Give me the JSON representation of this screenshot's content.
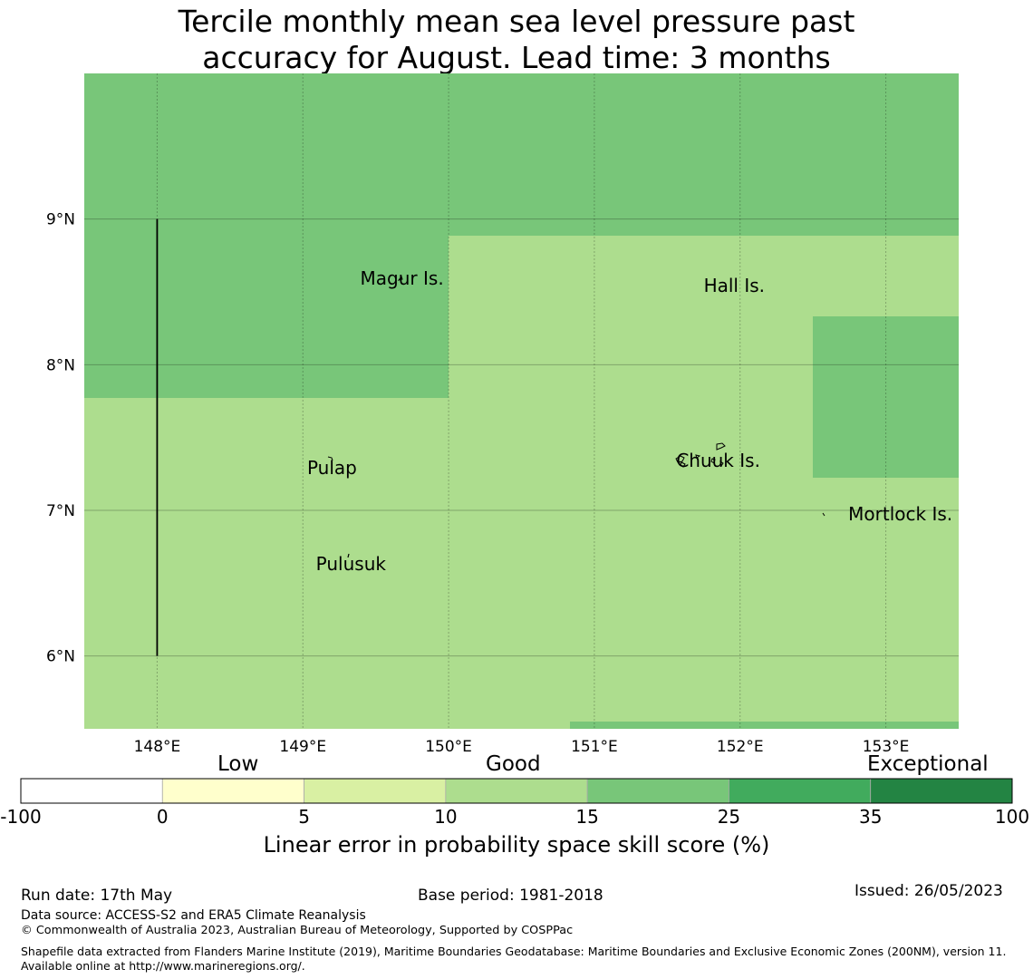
{
  "title_line1": "Tercile monthly mean sea level pressure past",
  "title_line2": "accuracy for August. Lead time: 3 months",
  "map": {
    "lon_range": [
      147.5,
      153.5
    ],
    "lat_range": [
      5.5,
      10.0
    ],
    "x_ticks": [
      "148°E",
      "149°E",
      "150°E",
      "151°E",
      "152°E",
      "153°E"
    ],
    "y_ticks": [
      "9°N",
      "8°N",
      "7°N",
      "6°N"
    ],
    "grid": true,
    "colors": {
      "good_15_25": "#78c679",
      "good_10_15": "#addd8e"
    },
    "places": [
      {
        "name": "Magur Is.",
        "lon": 149.68,
        "lat": 8.55
      },
      {
        "name": "Hall Is.",
        "lon": 151.96,
        "lat": 8.5
      },
      {
        "name": "Pulap",
        "lon": 149.2,
        "lat": 7.25
      },
      {
        "name": "Chuuk Is.",
        "lon": 151.85,
        "lat": 7.3
      },
      {
        "name": "Mortlock Is.",
        "lon": 153.1,
        "lat": 6.93
      },
      {
        "name": "Pulusuk",
        "lon": 149.33,
        "lat": 6.59
      }
    ]
  },
  "colorbar": {
    "categories": [
      "Low",
      "Good",
      "Exceptional"
    ],
    "ticks": [
      "-100",
      "0",
      "5",
      "10",
      "15",
      "25",
      "35",
      "100"
    ],
    "colors": [
      "#ffffff",
      "#ffffcc",
      "#d9f0a3",
      "#addd8e",
      "#78c679",
      "#41ab5d",
      "#238443"
    ],
    "label": "Linear error in probability space skill score (%)"
  },
  "footer": {
    "run_date": "Run date: 17th May",
    "base_period": "Base period: 1981-2018",
    "issued": "Issued: 26/05/2023",
    "data_source": "Data source: ACCESS-S2 and ERA5 Climate Reanalysis",
    "copyright": "© Commonwealth of Australia 2023, Australian Bureau of Meteorology, Supported by COSPPac",
    "shapefile": "Shapefile data extracted from Flanders Marine Institute (2019), Maritime Boundaries Geodatabase: Maritime Boundaries and Exclusive Economic Zones (200NM), version 11. Available online at http://www.marineregions.org/."
  }
}
